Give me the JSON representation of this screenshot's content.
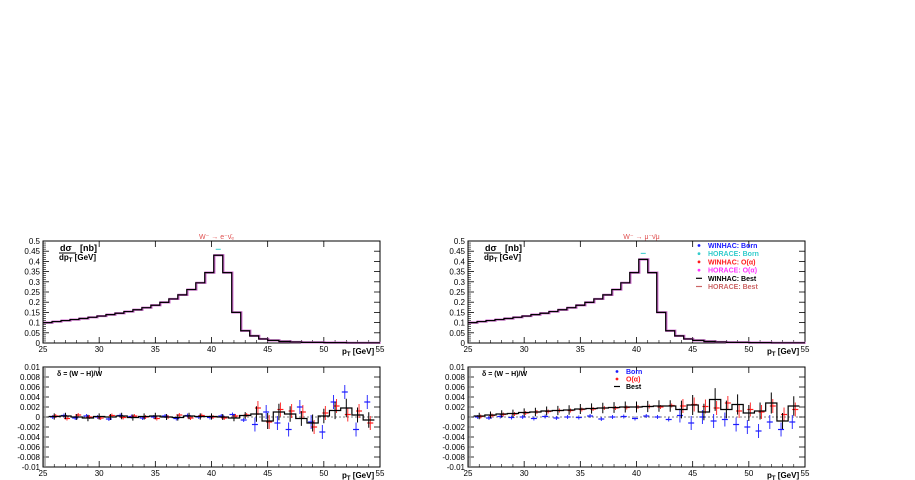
{
  "chart_data": [
    {
      "type": "line",
      "panel": "left-top",
      "title": "W⁻ → e⁻ν̄ₑ",
      "ylabel_num": "dσ",
      "ylabel_den": "dp",
      "ylabel_den_sub": "T",
      "ylabel_unit": "[nb]",
      "ylabel_den_unit": "[GeV]",
      "xlabel_main": "p",
      "xlabel_sub": "T",
      "xlabel_unit": "[GeV]",
      "xlim": [
        25,
        55
      ],
      "ylim": [
        0,
        0.5
      ],
      "xticks": [
        "25",
        "30",
        "35",
        "40",
        "45",
        "50",
        "55"
      ],
      "yticks": [
        "0",
        "0.05",
        "0.1",
        "0.15",
        "0.2",
        "0.25",
        "0.3",
        "0.35",
        "0.4",
        "0.45",
        "0.5"
      ],
      "x": [
        25,
        25.8,
        26.6,
        27.4,
        28.2,
        29,
        29.8,
        30.6,
        31.4,
        32.2,
        33,
        33.8,
        34.6,
        35.4,
        36.2,
        37,
        37.8,
        38.6,
        39.4,
        40.2,
        41,
        41.8,
        42.6,
        43.4,
        44.2,
        45,
        46,
        47,
        48,
        50,
        52,
        54
      ],
      "series": [
        {
          "name": "WINHAC: Best",
          "values": [
            0.1,
            0.105,
            0.11,
            0.115,
            0.12,
            0.126,
            0.132,
            0.139,
            0.146,
            0.154,
            0.163,
            0.173,
            0.185,
            0.199,
            0.216,
            0.236,
            0.262,
            0.295,
            0.345,
            0.43,
            0.345,
            0.15,
            0.06,
            0.035,
            0.02,
            0.013,
            0.008,
            0.005,
            0.003,
            0.002,
            0.001,
            0.001
          ]
        }
      ]
    },
    {
      "type": "line",
      "panel": "right-top",
      "title": "W⁻ → μ⁻ν̄μ",
      "ylabel_num": "dσ",
      "ylabel_den": "dp",
      "ylabel_den_sub": "T",
      "ylabel_unit": "[nb]",
      "ylabel_den_unit": "[GeV]",
      "xlabel_main": "p",
      "xlabel_sub": "T",
      "xlabel_unit": "[GeV]",
      "xlim": [
        25,
        55
      ],
      "ylim": [
        0,
        0.5
      ],
      "xticks": [
        "25",
        "30",
        "35",
        "40",
        "45",
        "50",
        "55"
      ],
      "yticks": [
        "0",
        "0.05",
        "0.1",
        "0.15",
        "0.2",
        "0.25",
        "0.3",
        "0.35",
        "0.4",
        "0.45",
        "0.5"
      ],
      "legend": [
        {
          "label": "WINHAC: Born",
          "color": "#1a1aff",
          "marker": "dot"
        },
        {
          "label": "HORACE: Born",
          "color": "#33cccc",
          "marker": "dot"
        },
        {
          "label": "WINHAC: O(α)",
          "color": "#ff1a1a",
          "marker": "dot"
        },
        {
          "label": "HORACE: O(α)",
          "color": "#ff33ff",
          "marker": "dot"
        },
        {
          "label": "WINHAC: Best",
          "color": "#000000",
          "marker": "dash"
        },
        {
          "label": "HORACE: Best",
          "color": "#cc6666",
          "marker": "dash"
        }
      ],
      "x": [
        25,
        25.8,
        26.6,
        27.4,
        28.2,
        29,
        29.8,
        30.6,
        31.4,
        32.2,
        33,
        33.8,
        34.6,
        35.4,
        36.2,
        37,
        37.8,
        38.6,
        39.4,
        40.2,
        41,
        41.8,
        42.6,
        43.4,
        44.2,
        45,
        46,
        47,
        48,
        50,
        52,
        54
      ],
      "series": [
        {
          "name": "WINHAC: Best",
          "values": [
            0.1,
            0.105,
            0.11,
            0.115,
            0.12,
            0.126,
            0.132,
            0.139,
            0.146,
            0.154,
            0.163,
            0.173,
            0.185,
            0.199,
            0.216,
            0.236,
            0.262,
            0.295,
            0.345,
            0.41,
            0.345,
            0.15,
            0.06,
            0.035,
            0.02,
            0.013,
            0.008,
            0.005,
            0.003,
            0.002,
            0.001,
            0.001
          ]
        }
      ]
    },
    {
      "type": "scatter",
      "panel": "left-bottom",
      "ylabel": "δ = (W − H)/W",
      "xlabel_main": "p",
      "xlabel_sub": "T",
      "xlabel_unit": "[GeV]",
      "xlim": [
        25,
        55
      ],
      "ylim": [
        -0.01,
        0.01
      ],
      "xticks": [
        "25",
        "30",
        "35",
        "40",
        "45",
        "50",
        "55"
      ],
      "yticks": [
        "-0.01",
        "-0.008",
        "-0.006",
        "-0.004",
        "-0.002",
        "0",
        "0.002",
        "0.004",
        "0.006",
        "0.008",
        "0.01"
      ],
      "x": [
        26,
        27,
        28,
        29,
        30,
        31,
        32,
        33,
        34,
        35,
        36,
        37,
        38,
        39,
        40,
        41,
        42,
        43,
        44,
        45,
        46,
        47,
        48,
        49,
        50,
        51,
        52,
        53,
        54
      ],
      "series": [
        {
          "name": "Born",
          "color": "#1a1aff",
          "values": [
            0.0,
            0.0003,
            -0.0002,
            0.0002,
            0.0,
            -0.0004,
            0.0003,
            0.0001,
            -0.0002,
            0.0,
            0.0002,
            -0.0003,
            0.0003,
            0.0,
            -0.0001,
            0.0002,
            0.0005,
            -0.0006,
            -0.0015,
            0.001,
            -0.0012,
            -0.0025,
            0.002,
            -0.001,
            -0.003,
            0.003,
            0.005,
            -0.0025,
            0.003
          ]
        },
        {
          "name": "O(α)",
          "color": "#ff1a1a",
          "values": [
            0.0002,
            -0.0003,
            0.0004,
            0.0,
            -0.0002,
            0.0003,
            -0.0001,
            0.0002,
            0.0,
            -0.0003,
            0.0,
            0.0004,
            -0.0002,
            0.0003,
            0.0,
            -0.0002,
            0.0002,
            0.0004,
            0.0018,
            -0.001,
            0.0015,
            0.0012,
            0.001,
            -0.002,
            0.0008,
            0.0022,
            0.0005,
            0.0012,
            -0.0012
          ]
        },
        {
          "name": "Best",
          "color": "#000000",
          "values": [
            0.0001,
            0.0002,
            0.0,
            -0.0002,
            0.0001,
            0.0,
            0.0002,
            -0.0001,
            0.0001,
            0.0002,
            0.0,
            -0.0001,
            0.0002,
            0.0001,
            0.0001,
            0.0,
            -0.0002,
            0.0003,
            0.0006,
            -0.0008,
            0.001,
            0.0006,
            -0.0003,
            -0.0012,
            0.0002,
            0.0013,
            0.0018,
            0.0004,
            -0.0006
          ]
        }
      ]
    },
    {
      "type": "scatter",
      "panel": "right-bottom",
      "ylabel": "δ = (W − H)/W",
      "xlabel_main": "p",
      "xlabel_sub": "T",
      "xlabel_unit": "[GeV]",
      "xlim": [
        25,
        55
      ],
      "ylim": [
        -0.01,
        0.01
      ],
      "xticks": [
        "25",
        "30",
        "35",
        "40",
        "45",
        "50",
        "55"
      ],
      "yticks": [
        "-0.01",
        "-0.008",
        "-0.006",
        "-0.004",
        "-0.002",
        "0",
        "0.002",
        "0.004",
        "0.006",
        "0.008",
        "0.01"
      ],
      "legend": [
        {
          "label": "Born",
          "color": "#1a1aff",
          "marker": "dot"
        },
        {
          "label": "O(α)",
          "color": "#ff1a1a",
          "marker": "dot"
        },
        {
          "label": "Best",
          "color": "#000000",
          "marker": "dash"
        }
      ],
      "x": [
        26,
        27,
        28,
        29,
        30,
        31,
        32,
        33,
        34,
        35,
        36,
        37,
        38,
        39,
        40,
        41,
        42,
        43,
        44,
        45,
        46,
        47,
        48,
        49,
        50,
        51,
        52,
        53,
        54
      ],
      "series": [
        {
          "name": "Born",
          "color": "#1a1aff",
          "values": [
            0.0,
            -0.0002,
            0.0001,
            -0.0001,
            0.0,
            -0.0003,
            0.0001,
            -0.0002,
            0.0,
            -0.0001,
            0.0002,
            -0.0004,
            0.0,
            0.0001,
            -0.0003,
            0.0002,
            0.0,
            -0.0005,
            0.0003,
            -0.0012,
            0.0,
            -0.0008,
            -0.0005,
            -0.0015,
            -0.002,
            -0.0028,
            -0.001,
            -0.0025,
            -0.001
          ]
        },
        {
          "name": "O(α)",
          "color": "#ff1a1a",
          "values": [
            0.0001,
            0.0003,
            0.0005,
            0.0006,
            0.0008,
            0.001,
            0.0011,
            0.0013,
            0.0013,
            0.0015,
            0.0016,
            0.0018,
            0.0018,
            0.0019,
            0.002,
            0.0021,
            0.002,
            0.0023,
            0.0022,
            0.0025,
            0.0021,
            0.0018,
            0.0028,
            0.0012,
            0.0015,
            0.001,
            0.0022,
            0.0005,
            0.0015
          ]
        },
        {
          "name": "Best",
          "color": "#000000",
          "values": [
            0.0002,
            0.0004,
            0.0006,
            0.0007,
            0.0009,
            0.001,
            0.0012,
            0.0013,
            0.0014,
            0.0016,
            0.0017,
            0.0018,
            0.0019,
            0.002,
            0.002,
            0.0021,
            0.0022,
            0.0022,
            0.0015,
            0.0024,
            0.001,
            0.0035,
            0.0015,
            0.0025,
            0.0008,
            0.0012,
            0.0028,
            -0.0008,
            0.0022
          ]
        }
      ]
    }
  ]
}
